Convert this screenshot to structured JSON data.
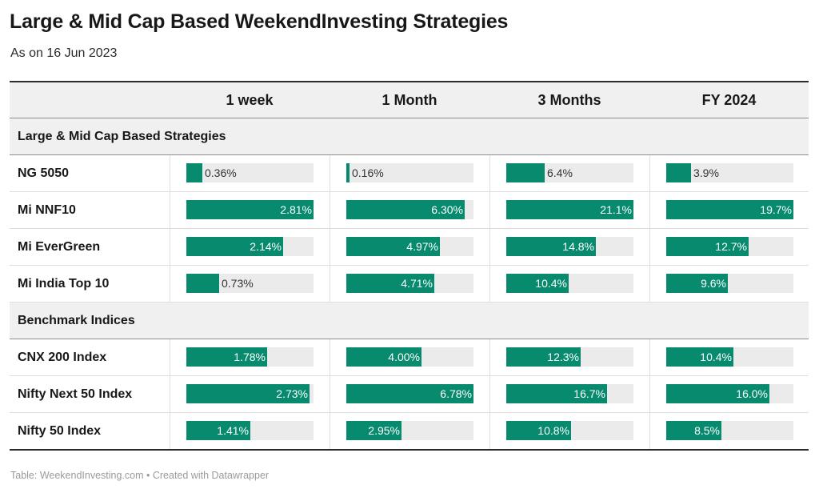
{
  "title": "Large & Mid Cap Based WeekendInvesting Strategies",
  "subtitle": "As on 16 Jun 2023",
  "footer": "Table: WeekendInvesting.com • Created with Datawrapper",
  "colors": {
    "bar": "#078a6e",
    "track": "#ebebeb",
    "band": "#f0f0f0"
  },
  "table": {
    "columns": [
      "1 week",
      "1 Month",
      "3 Months",
      "FY 2024"
    ],
    "groups": [
      {
        "label": "Large & Mid Cap Based Strategies",
        "rows": [
          {
            "name": "NG 5050",
            "labels": [
              "0.36%",
              "0.16%",
              "6.4%",
              "3.9%"
            ]
          },
          {
            "name": "Mi NNF10",
            "labels": [
              "2.81%",
              "6.30%",
              "21.1%",
              "19.7%"
            ]
          },
          {
            "name": "Mi EverGreen",
            "labels": [
              "2.14%",
              "4.97%",
              "14.8%",
              "12.7%"
            ]
          },
          {
            "name": "Mi India Top 10",
            "labels": [
              "0.73%",
              "4.71%",
              "10.4%",
              "9.6%"
            ]
          }
        ]
      },
      {
        "label": "Benchmark Indices",
        "rows": [
          {
            "name": "CNX 200 Index",
            "labels": [
              "1.78%",
              "4.00%",
              "12.3%",
              "10.4%"
            ]
          },
          {
            "name": "Nifty Next 50 Index",
            "labels": [
              "2.73%",
              "6.78%",
              "16.7%",
              "16.0%"
            ]
          },
          {
            "name": "Nifty 50 Index",
            "labels": [
              "1.41%",
              "2.95%",
              "10.8%",
              "8.5%"
            ]
          }
        ]
      }
    ]
  },
  "chart_data": {
    "type": "table",
    "title": "Large & Mid Cap Based WeekendInvesting Strategies",
    "subtitle": "As on 16 Jun 2023",
    "columns": [
      "1 week",
      "1 Month",
      "3 Months",
      "FY 2024"
    ],
    "column_max": [
      2.81,
      6.78,
      21.1,
      19.7
    ],
    "rows": [
      {
        "group": "Large & Mid Cap Based Strategies",
        "name": "NG 5050",
        "values": [
          0.36,
          0.16,
          6.4,
          3.9
        ]
      },
      {
        "group": "Large & Mid Cap Based Strategies",
        "name": "Mi NNF10",
        "values": [
          2.81,
          6.3,
          21.1,
          19.7
        ]
      },
      {
        "group": "Large & Mid Cap Based Strategies",
        "name": "Mi EverGreen",
        "values": [
          2.14,
          4.97,
          14.8,
          12.7
        ]
      },
      {
        "group": "Large & Mid Cap Based Strategies",
        "name": "Mi India Top 10",
        "values": [
          0.73,
          4.71,
          10.4,
          9.6
        ]
      },
      {
        "group": "Benchmark Indices",
        "name": "CNX 200 Index",
        "values": [
          1.78,
          4.0,
          12.3,
          10.4
        ]
      },
      {
        "group": "Benchmark Indices",
        "name": "Nifty Next 50 Index",
        "values": [
          2.73,
          6.78,
          16.7,
          16.0
        ]
      },
      {
        "group": "Benchmark Indices",
        "name": "Nifty 50 Index",
        "values": [
          1.41,
          2.95,
          10.8,
          8.5
        ]
      }
    ]
  }
}
